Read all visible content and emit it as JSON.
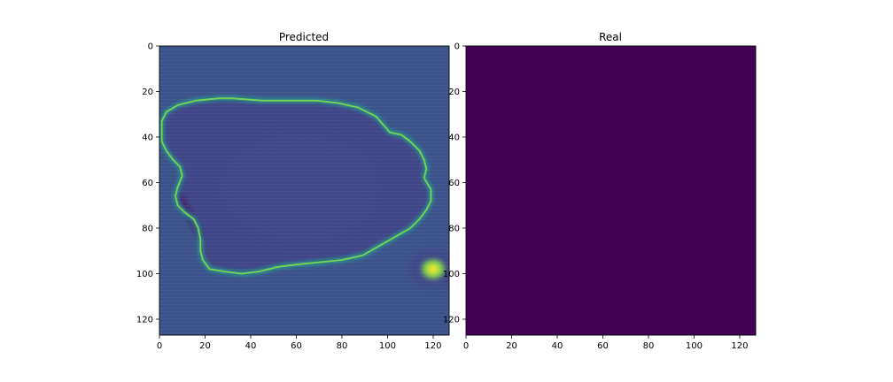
{
  "chart_data": [
    {
      "type": "heatmap",
      "title": "Predicted",
      "xlabel": "",
      "ylabel": "",
      "xlim": [
        0,
        127
      ],
      "ylim": [
        127,
        0
      ],
      "xticks": [
        0,
        20,
        40,
        60,
        80,
        100,
        120
      ],
      "yticks": [
        0,
        20,
        40,
        60,
        80,
        100,
        120
      ],
      "colormap": "viridis",
      "background_value": 0.32,
      "background_color": "#3b6f8c",
      "blob": {
        "edge_value": 0.85,
        "interior_value": 0.26,
        "outline": [
          [
            1,
            33
          ],
          [
            3,
            29
          ],
          [
            8,
            26
          ],
          [
            16,
            24
          ],
          [
            26,
            23
          ],
          [
            32,
            23
          ],
          [
            45,
            24
          ],
          [
            57,
            24
          ],
          [
            69,
            24
          ],
          [
            78,
            25
          ],
          [
            87,
            27
          ],
          [
            95,
            31
          ],
          [
            101,
            38
          ],
          [
            106,
            39
          ],
          [
            110,
            42
          ],
          [
            114,
            46
          ],
          [
            116,
            50
          ],
          [
            117,
            54
          ],
          [
            116,
            58
          ],
          [
            119,
            63
          ],
          [
            119,
            68
          ],
          [
            117,
            72
          ],
          [
            114,
            76
          ],
          [
            110,
            80
          ],
          [
            103,
            84
          ],
          [
            96,
            88
          ],
          [
            89,
            92
          ],
          [
            80,
            94
          ],
          [
            70,
            95
          ],
          [
            60,
            96
          ],
          [
            52,
            97
          ],
          [
            44,
            99
          ],
          [
            36,
            100
          ],
          [
            28,
            99
          ],
          [
            22,
            98
          ],
          [
            19,
            94
          ],
          [
            18,
            90
          ],
          [
            18,
            85
          ],
          [
            17,
            80
          ],
          [
            15,
            76
          ],
          [
            11,
            73
          ],
          [
            8,
            70
          ],
          [
            7,
            66
          ],
          [
            8,
            62
          ],
          [
            10,
            57
          ],
          [
            9,
            53
          ],
          [
            6,
            50
          ],
          [
            3,
            46
          ],
          [
            1,
            42
          ]
        ]
      },
      "hotspot": {
        "x": 120,
        "y": 98,
        "value": 1.0
      }
    },
    {
      "type": "heatmap",
      "title": "Real",
      "xlabel": "",
      "ylabel": "",
      "xlim": [
        0,
        127
      ],
      "ylim": [
        127,
        0
      ],
      "xticks": [
        0,
        20,
        40,
        60,
        80,
        100,
        120
      ],
      "yticks": [
        0,
        20,
        40,
        60,
        80,
        100,
        120
      ],
      "colormap": "viridis",
      "uniform_value": 0.0,
      "uniform_color": "#440154"
    }
  ]
}
